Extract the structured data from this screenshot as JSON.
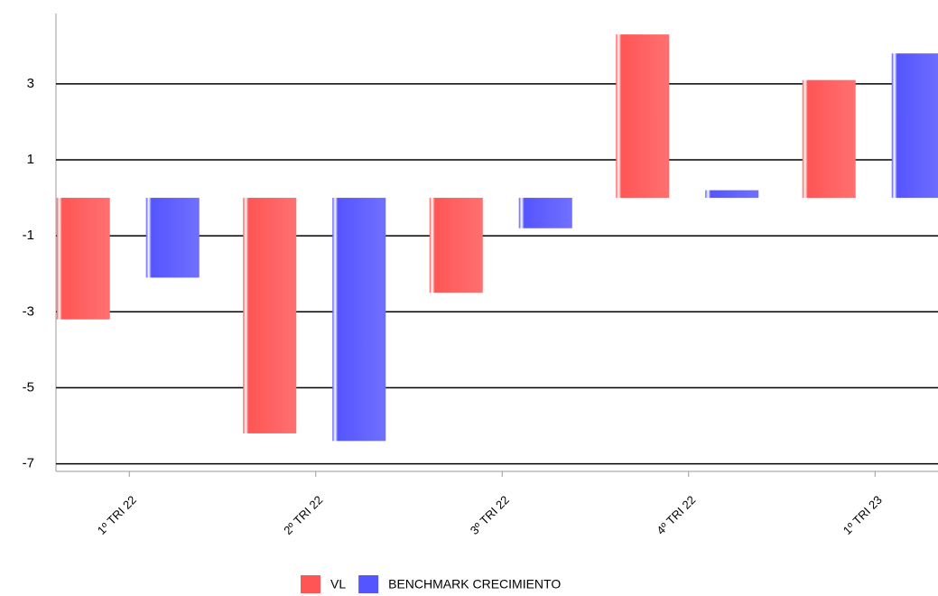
{
  "chart_data": {
    "type": "bar",
    "categories": [
      "1º TRI 22",
      "2º TRI 22",
      "3º TRI 22",
      "4º TRI 22",
      "1º TRI 23"
    ],
    "series": [
      {
        "name": "VL",
        "color": "#ff5555",
        "values": [
          -3.2,
          -6.2,
          -2.5,
          4.3,
          3.1
        ]
      },
      {
        "name": "BENCHMARK CRECIMIENTO",
        "color": "#5555ff",
        "values": [
          -2.1,
          -6.4,
          -0.8,
          0.2,
          3.8
        ]
      }
    ],
    "ylim": [
      -7.2,
      4.85
    ],
    "yticks": [
      -7,
      -5,
      -3,
      -1,
      1,
      3
    ],
    "grid": true
  }
}
